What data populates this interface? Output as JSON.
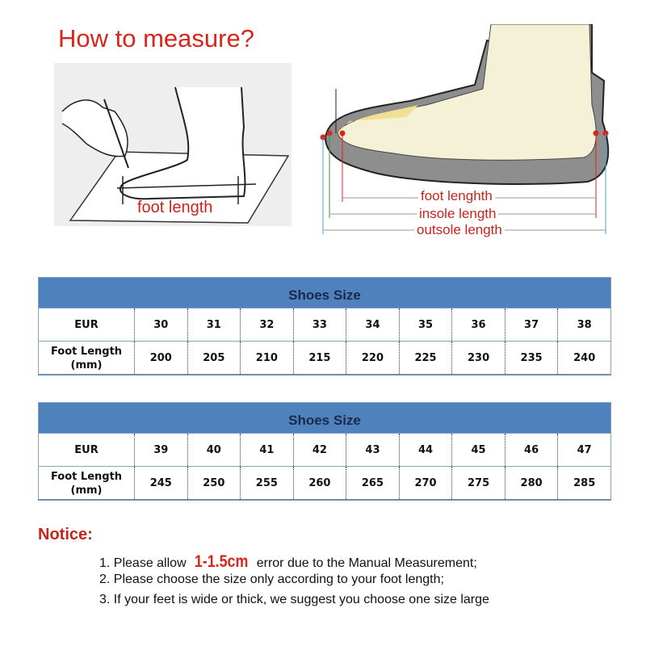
{
  "header": {
    "title": "How to measure?"
  },
  "illustration_left": {
    "label": "foot length"
  },
  "illustration_right": {
    "labels": [
      "foot lenghth",
      "insole length",
      "outsole length"
    ]
  },
  "tables": [
    {
      "title": "Shoes Size",
      "row_labels": [
        "EUR",
        "Foot Length (mm)"
      ],
      "eur": [
        "30",
        "31",
        "32",
        "33",
        "34",
        "35",
        "36",
        "37",
        "38"
      ],
      "foot_length": [
        "200",
        "205",
        "210",
        "215",
        "220",
        "225",
        "230",
        "235",
        "240"
      ]
    },
    {
      "title": "Shoes Size",
      "row_labels": [
        "EUR",
        "Foot Length (mm)"
      ],
      "eur": [
        "39",
        "40",
        "41",
        "42",
        "43",
        "44",
        "45",
        "46",
        "47"
      ],
      "foot_length": [
        "245",
        "250",
        "255",
        "260",
        "265",
        "270",
        "275",
        "280",
        "285"
      ]
    }
  ],
  "notice": {
    "heading": "Notice:",
    "item1_pre": "1. Please allow ",
    "item1_highlight": "1-1.5cm",
    "item1_post": " error due to the Manual Measurement;",
    "item2": "2. Please choose the size only according to your foot length;",
    "item3": "3. If your feet is wide or thick, we suggest you choose one size large"
  },
  "colors": {
    "accent_red": "#d8261c",
    "table_header": "#4f81bd"
  }
}
